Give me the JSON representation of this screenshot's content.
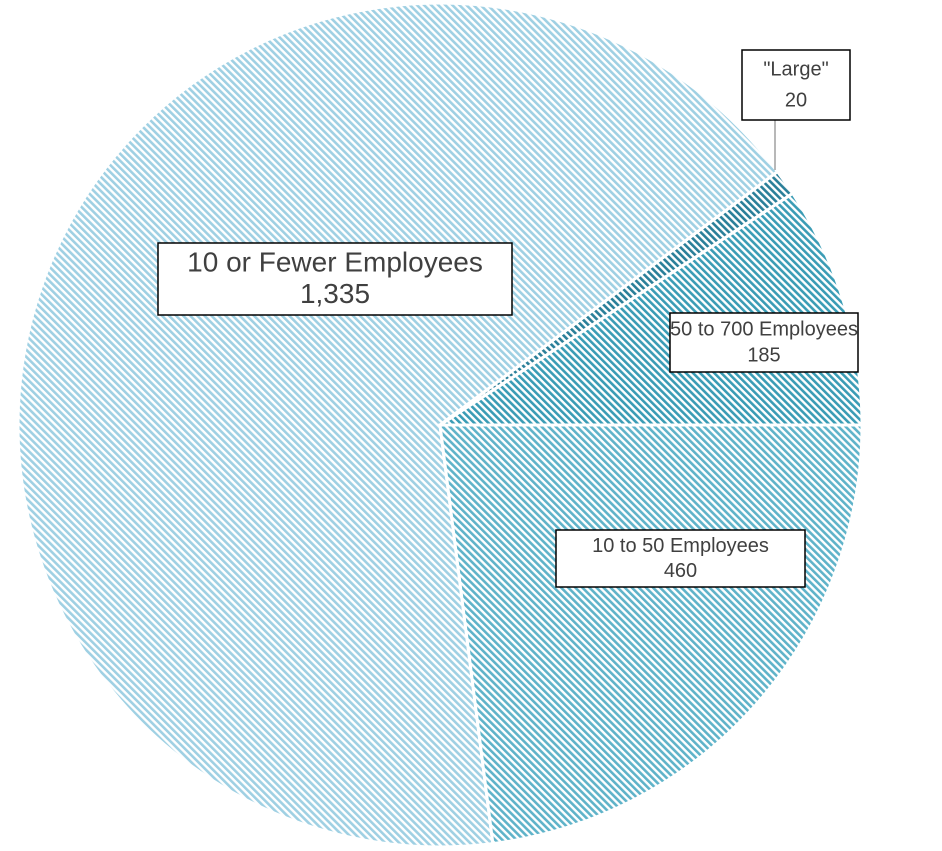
{
  "chart_data": {
    "type": "pie",
    "categories": [
      "50 to 700 Employees",
      "\"Large\"",
      "10 or Fewer Employees",
      "10 to 50 Employees"
    ],
    "values": [
      185,
      20,
      1335,
      460
    ],
    "value_labels": [
      "185",
      "20",
      "1,335",
      "460"
    ],
    "colors": [
      "#3a9cb5",
      "#2a7f99",
      "#9fd0e3",
      "#5fb3c9"
    ]
  }
}
